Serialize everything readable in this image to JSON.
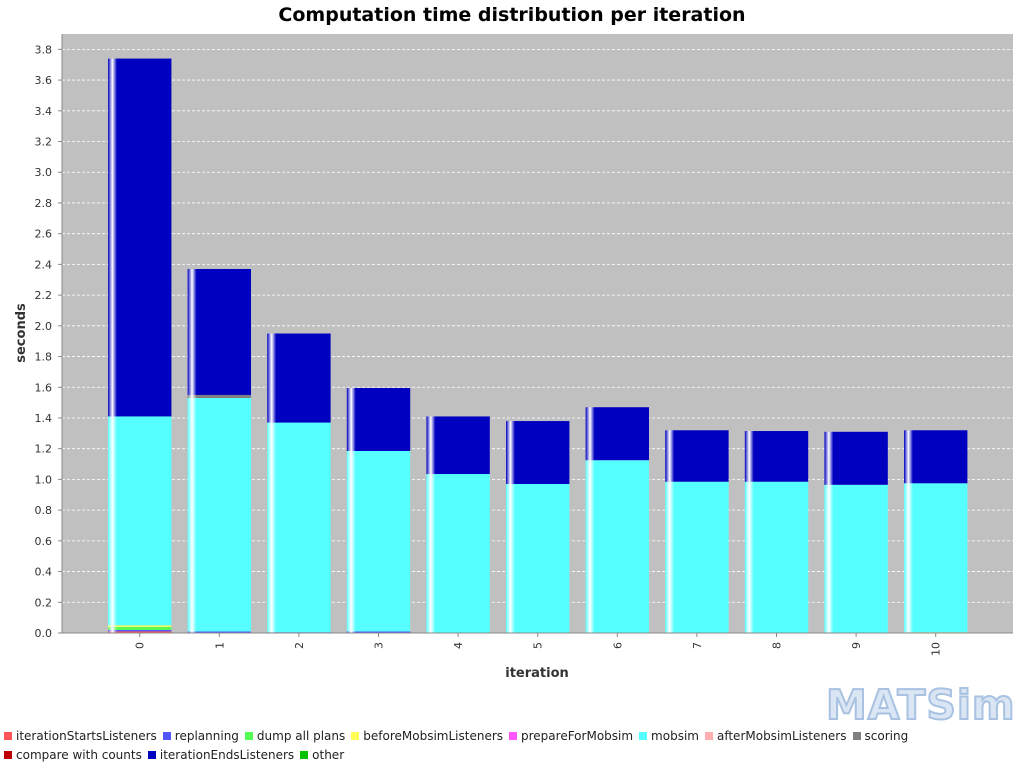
{
  "chart_data": {
    "type": "bar",
    "stacked": true,
    "title": "Computation time distribution per iteration",
    "xlabel": "iteration",
    "ylabel": "seconds",
    "ylim": [
      0,
      3.9
    ],
    "yticks": [
      0.0,
      0.2,
      0.4,
      0.6,
      0.8,
      1.0,
      1.2,
      1.4,
      1.6,
      1.8,
      2.0,
      2.2,
      2.4,
      2.6,
      2.8,
      3.0,
      3.2,
      3.4,
      3.6,
      3.8
    ],
    "grid": true,
    "legend_position": "bottom",
    "categories": [
      "0",
      "1",
      "2",
      "3",
      "4",
      "5",
      "6",
      "7",
      "8",
      "9",
      "10"
    ],
    "series": [
      {
        "name": "iterationStartsListeners",
        "color": "#ff5555",
        "values": [
          0.01,
          0,
          0,
          0,
          0,
          0,
          0,
          0,
          0,
          0,
          0
        ]
      },
      {
        "name": "replanning",
        "color": "#5555ff",
        "values": [
          0.01,
          0.01,
          0.005,
          0.01,
          0,
          0,
          0,
          0,
          0,
          0,
          0
        ]
      },
      {
        "name": "dump all plans",
        "color": "#55ff55",
        "values": [
          0.02,
          0,
          0,
          0,
          0,
          0,
          0,
          0,
          0,
          0,
          0
        ]
      },
      {
        "name": "beforeMobsimListeners",
        "color": "#ffff55",
        "values": [
          0.01,
          0,
          0,
          0,
          0,
          0,
          0,
          0,
          0,
          0,
          0.005
        ]
      },
      {
        "name": "prepareForMobsim",
        "color": "#ff55ff",
        "values": [
          0,
          0,
          0,
          0,
          0,
          0,
          0,
          0,
          0,
          0,
          0
        ]
      },
      {
        "name": "mobsim",
        "color": "#55ffff",
        "values": [
          1.36,
          1.52,
          1.365,
          1.175,
          1.035,
          0.97,
          1.125,
          0.985,
          0.985,
          0.965,
          0.97
        ]
      },
      {
        "name": "afterMobsimListeners",
        "color": "#ffafaf",
        "values": [
          0,
          0,
          0,
          0,
          0,
          0,
          0,
          0,
          0,
          0,
          0
        ]
      },
      {
        "name": "scoring",
        "color": "#808080",
        "values": [
          0,
          0.02,
          0,
          0,
          0,
          0,
          0,
          0,
          0,
          0,
          0
        ]
      },
      {
        "name": "compare with counts",
        "color": "#c00000",
        "values": [
          0,
          0,
          0,
          0,
          0,
          0,
          0,
          0,
          0,
          0,
          0
        ]
      },
      {
        "name": "iterationEndsListeners",
        "color": "#0000c0",
        "values": [
          2.33,
          0.82,
          0.58,
          0.41,
          0.375,
          0.41,
          0.345,
          0.335,
          0.33,
          0.345,
          0.345
        ]
      },
      {
        "name": "other",
        "color": "#00c000",
        "values": [
          0,
          0,
          0,
          0,
          0,
          0,
          0,
          0,
          0,
          0,
          0
        ]
      }
    ]
  },
  "logo": {
    "text": "MATSim"
  }
}
